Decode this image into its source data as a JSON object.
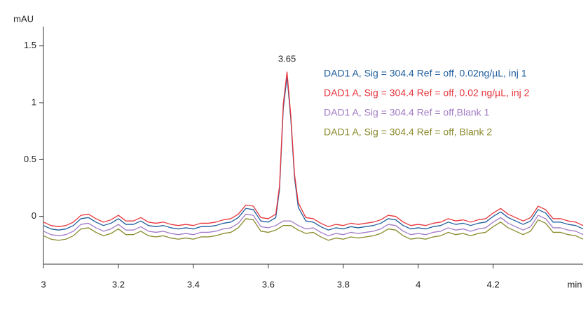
{
  "chart_data": {
    "type": "line",
    "y_label": "mAU",
    "x_label": "min",
    "x": [
      3.0,
      3.02,
      3.04,
      3.06,
      3.08,
      3.1,
      3.12,
      3.14,
      3.16,
      3.18,
      3.2,
      3.22,
      3.24,
      3.26,
      3.28,
      3.3,
      3.32,
      3.34,
      3.36,
      3.38,
      3.4,
      3.42,
      3.44,
      3.46,
      3.48,
      3.5,
      3.52,
      3.54,
      3.56,
      3.58,
      3.6,
      3.62,
      3.63,
      3.64,
      3.65,
      3.66,
      3.67,
      3.68,
      3.7,
      3.72,
      3.74,
      3.76,
      3.78,
      3.8,
      3.82,
      3.84,
      3.86,
      3.88,
      3.9,
      3.92,
      3.94,
      3.96,
      3.98,
      4.0,
      4.02,
      4.04,
      4.06,
      4.08,
      4.1,
      4.12,
      4.14,
      4.16,
      4.18,
      4.2,
      4.22,
      4.24,
      4.26,
      4.28,
      4.3,
      4.32,
      4.34,
      4.36,
      4.38,
      4.4,
      4.42,
      4.44
    ],
    "series": [
      {
        "name": "DAD1 A, Sig = 304.4 Ref = off, 0.02ng/µL, inj 1",
        "color": "#1f5e9e",
        "values": [
          -0.08,
          -0.11,
          -0.12,
          -0.11,
          -0.08,
          -0.02,
          -0.01,
          -0.05,
          -0.08,
          -0.06,
          -0.02,
          -0.07,
          -0.07,
          -0.04,
          -0.08,
          -0.09,
          -0.08,
          -0.1,
          -0.11,
          -0.1,
          -0.11,
          -0.09,
          -0.09,
          -0.08,
          -0.06,
          -0.05,
          -0.01,
          0.07,
          0.06,
          -0.04,
          -0.05,
          -0.01,
          0.24,
          0.95,
          1.23,
          0.86,
          0.34,
          0.08,
          -0.04,
          -0.05,
          -0.09,
          -0.12,
          -0.1,
          -0.11,
          -0.09,
          -0.1,
          -0.09,
          -0.08,
          -0.06,
          -0.02,
          -0.03,
          -0.08,
          -0.11,
          -0.1,
          -0.11,
          -0.09,
          -0.08,
          -0.05,
          -0.07,
          -0.06,
          -0.08,
          -0.06,
          -0.05,
          0,
          0.04,
          -0.01,
          -0.04,
          -0.07,
          -0.04,
          0.06,
          0.03,
          -0.05,
          -0.05,
          -0.07,
          -0.08,
          -0.11
        ]
      },
      {
        "name": "DAD1 A, Sig = 304.4 Ref = off, 0.02 ng/µL, inj 2",
        "color": "#e8363c",
        "values": [
          -0.05,
          -0.08,
          -0.09,
          -0.08,
          -0.05,
          0.01,
          0.02,
          -0.02,
          -0.05,
          -0.03,
          0.01,
          -0.04,
          -0.04,
          -0.01,
          -0.05,
          -0.06,
          -0.05,
          -0.07,
          -0.08,
          -0.07,
          -0.08,
          -0.06,
          -0.06,
          -0.05,
          -0.03,
          -0.02,
          0.02,
          0.1,
          0.09,
          -0.01,
          -0.02,
          0.02,
          0.27,
          0.99,
          1.27,
          0.89,
          0.37,
          0.12,
          -0.01,
          -0.02,
          -0.06,
          -0.09,
          -0.07,
          -0.08,
          -0.06,
          -0.07,
          -0.06,
          -0.05,
          -0.03,
          0.01,
          0,
          -0.05,
          -0.08,
          -0.07,
          -0.08,
          -0.06,
          -0.05,
          -0.02,
          -0.04,
          -0.03,
          -0.05,
          -0.03,
          -0.02,
          0.03,
          0.07,
          0.02,
          -0.01,
          -0.04,
          -0.01,
          0.09,
          0.06,
          -0.02,
          -0.02,
          -0.04,
          -0.05,
          -0.08
        ]
      },
      {
        "name": "DAD1 A, Sig = 304.4 Ref = off,Blank 1",
        "color": "#a27cc6",
        "values": [
          -0.13,
          -0.16,
          -0.17,
          -0.16,
          -0.13,
          -0.07,
          -0.06,
          -0.1,
          -0.13,
          -0.11,
          -0.07,
          -0.12,
          -0.12,
          -0.09,
          -0.13,
          -0.14,
          -0.13,
          -0.15,
          -0.16,
          -0.15,
          -0.16,
          -0.14,
          -0.14,
          -0.13,
          -0.11,
          -0.1,
          -0.06,
          0.02,
          0.01,
          -0.09,
          -0.1,
          -0.08,
          -0.06,
          -0.04,
          -0.04,
          -0.04,
          -0.06,
          -0.08,
          -0.11,
          -0.1,
          -0.14,
          -0.17,
          -0.15,
          -0.16,
          -0.14,
          -0.15,
          -0.14,
          -0.13,
          -0.11,
          -0.07,
          -0.08,
          -0.13,
          -0.16,
          -0.15,
          -0.16,
          -0.14,
          -0.13,
          -0.1,
          -0.12,
          -0.11,
          -0.13,
          -0.11,
          -0.1,
          -0.05,
          -0.01,
          -0.06,
          -0.09,
          -0.12,
          -0.09,
          0.01,
          -0.02,
          -0.1,
          -0.1,
          -0.12,
          -0.13,
          -0.16
        ]
      },
      {
        "name": "DAD1 A, Sig = 304.4 Ref = off, Blank 2",
        "color": "#8a8a2c",
        "values": [
          -0.17,
          -0.2,
          -0.21,
          -0.2,
          -0.17,
          -0.11,
          -0.1,
          -0.14,
          -0.17,
          -0.15,
          -0.11,
          -0.16,
          -0.16,
          -0.13,
          -0.17,
          -0.18,
          -0.17,
          -0.19,
          -0.2,
          -0.19,
          -0.2,
          -0.18,
          -0.18,
          -0.17,
          -0.15,
          -0.14,
          -0.1,
          -0.02,
          -0.03,
          -0.13,
          -0.14,
          -0.12,
          -0.1,
          -0.08,
          -0.08,
          -0.08,
          -0.1,
          -0.12,
          -0.15,
          -0.14,
          -0.18,
          -0.21,
          -0.19,
          -0.2,
          -0.18,
          -0.19,
          -0.18,
          -0.17,
          -0.15,
          -0.11,
          -0.12,
          -0.17,
          -0.2,
          -0.19,
          -0.2,
          -0.18,
          -0.17,
          -0.14,
          -0.16,
          -0.15,
          -0.17,
          -0.15,
          -0.14,
          -0.09,
          -0.05,
          -0.1,
          -0.13,
          -0.16,
          -0.13,
          -0.03,
          -0.06,
          -0.14,
          -0.14,
          -0.16,
          -0.17,
          -0.2
        ]
      }
    ],
    "annotations": [
      {
        "text": "3.65",
        "x": 3.65,
        "y": 1.27
      }
    ],
    "xlim": [
      3,
      4.44
    ],
    "ylim": [
      -0.42,
      1.67
    ],
    "xticks": [
      3,
      3.2,
      3.4,
      3.6,
      3.8,
      4,
      4.2
    ],
    "yticks": [
      0,
      0.5,
      1,
      1.5
    ],
    "legend": "upper right",
    "grid": false
  }
}
